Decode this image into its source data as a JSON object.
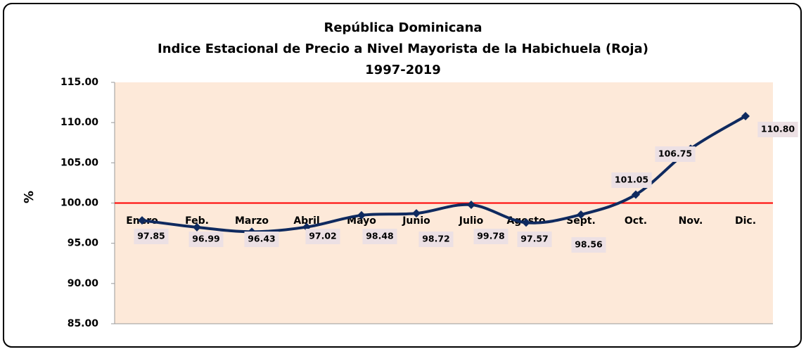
{
  "chart_data": {
    "type": "line",
    "title": "República Dominicana",
    "subtitle": "Indice Estacional  de Precio a Nivel Mayorista de la Habichuela  (Roja)",
    "period": "1997-2019",
    "y_label": "%",
    "categories": [
      "Enero",
      "Feb.",
      "Marzo",
      "Abril",
      "Mayo",
      "Junio",
      "Julio",
      "Agosto",
      "Sept.",
      "Oct.",
      "Nov.",
      "Dic."
    ],
    "values": [
      97.85,
      96.99,
      96.43,
      97.02,
      98.48,
      98.72,
      99.78,
      97.57,
      98.56,
      101.05,
      106.75,
      110.8
    ],
    "value_labels": [
      "97.85",
      "96.99",
      "96.43",
      "97.02",
      "98.48",
      "98.72",
      "99.78",
      "97.57",
      "98.56",
      "101.05",
      "106.75",
      "110.80"
    ],
    "color": "#0f2a5f",
    "reference_line": 100,
    "reference_color": "#ff0000",
    "ylim": [
      85,
      115
    ],
    "yticks": [
      {
        "value": 85,
        "label": "85.00"
      },
      {
        "value": 90,
        "label": "90.00"
      },
      {
        "value": 95,
        "label": "95.00"
      },
      {
        "value": 100,
        "label": "100.00"
      },
      {
        "value": 105,
        "label": "105.00"
      },
      {
        "value": 110,
        "label": "110.00"
      },
      {
        "value": 115,
        "label": "115.00"
      }
    ]
  }
}
